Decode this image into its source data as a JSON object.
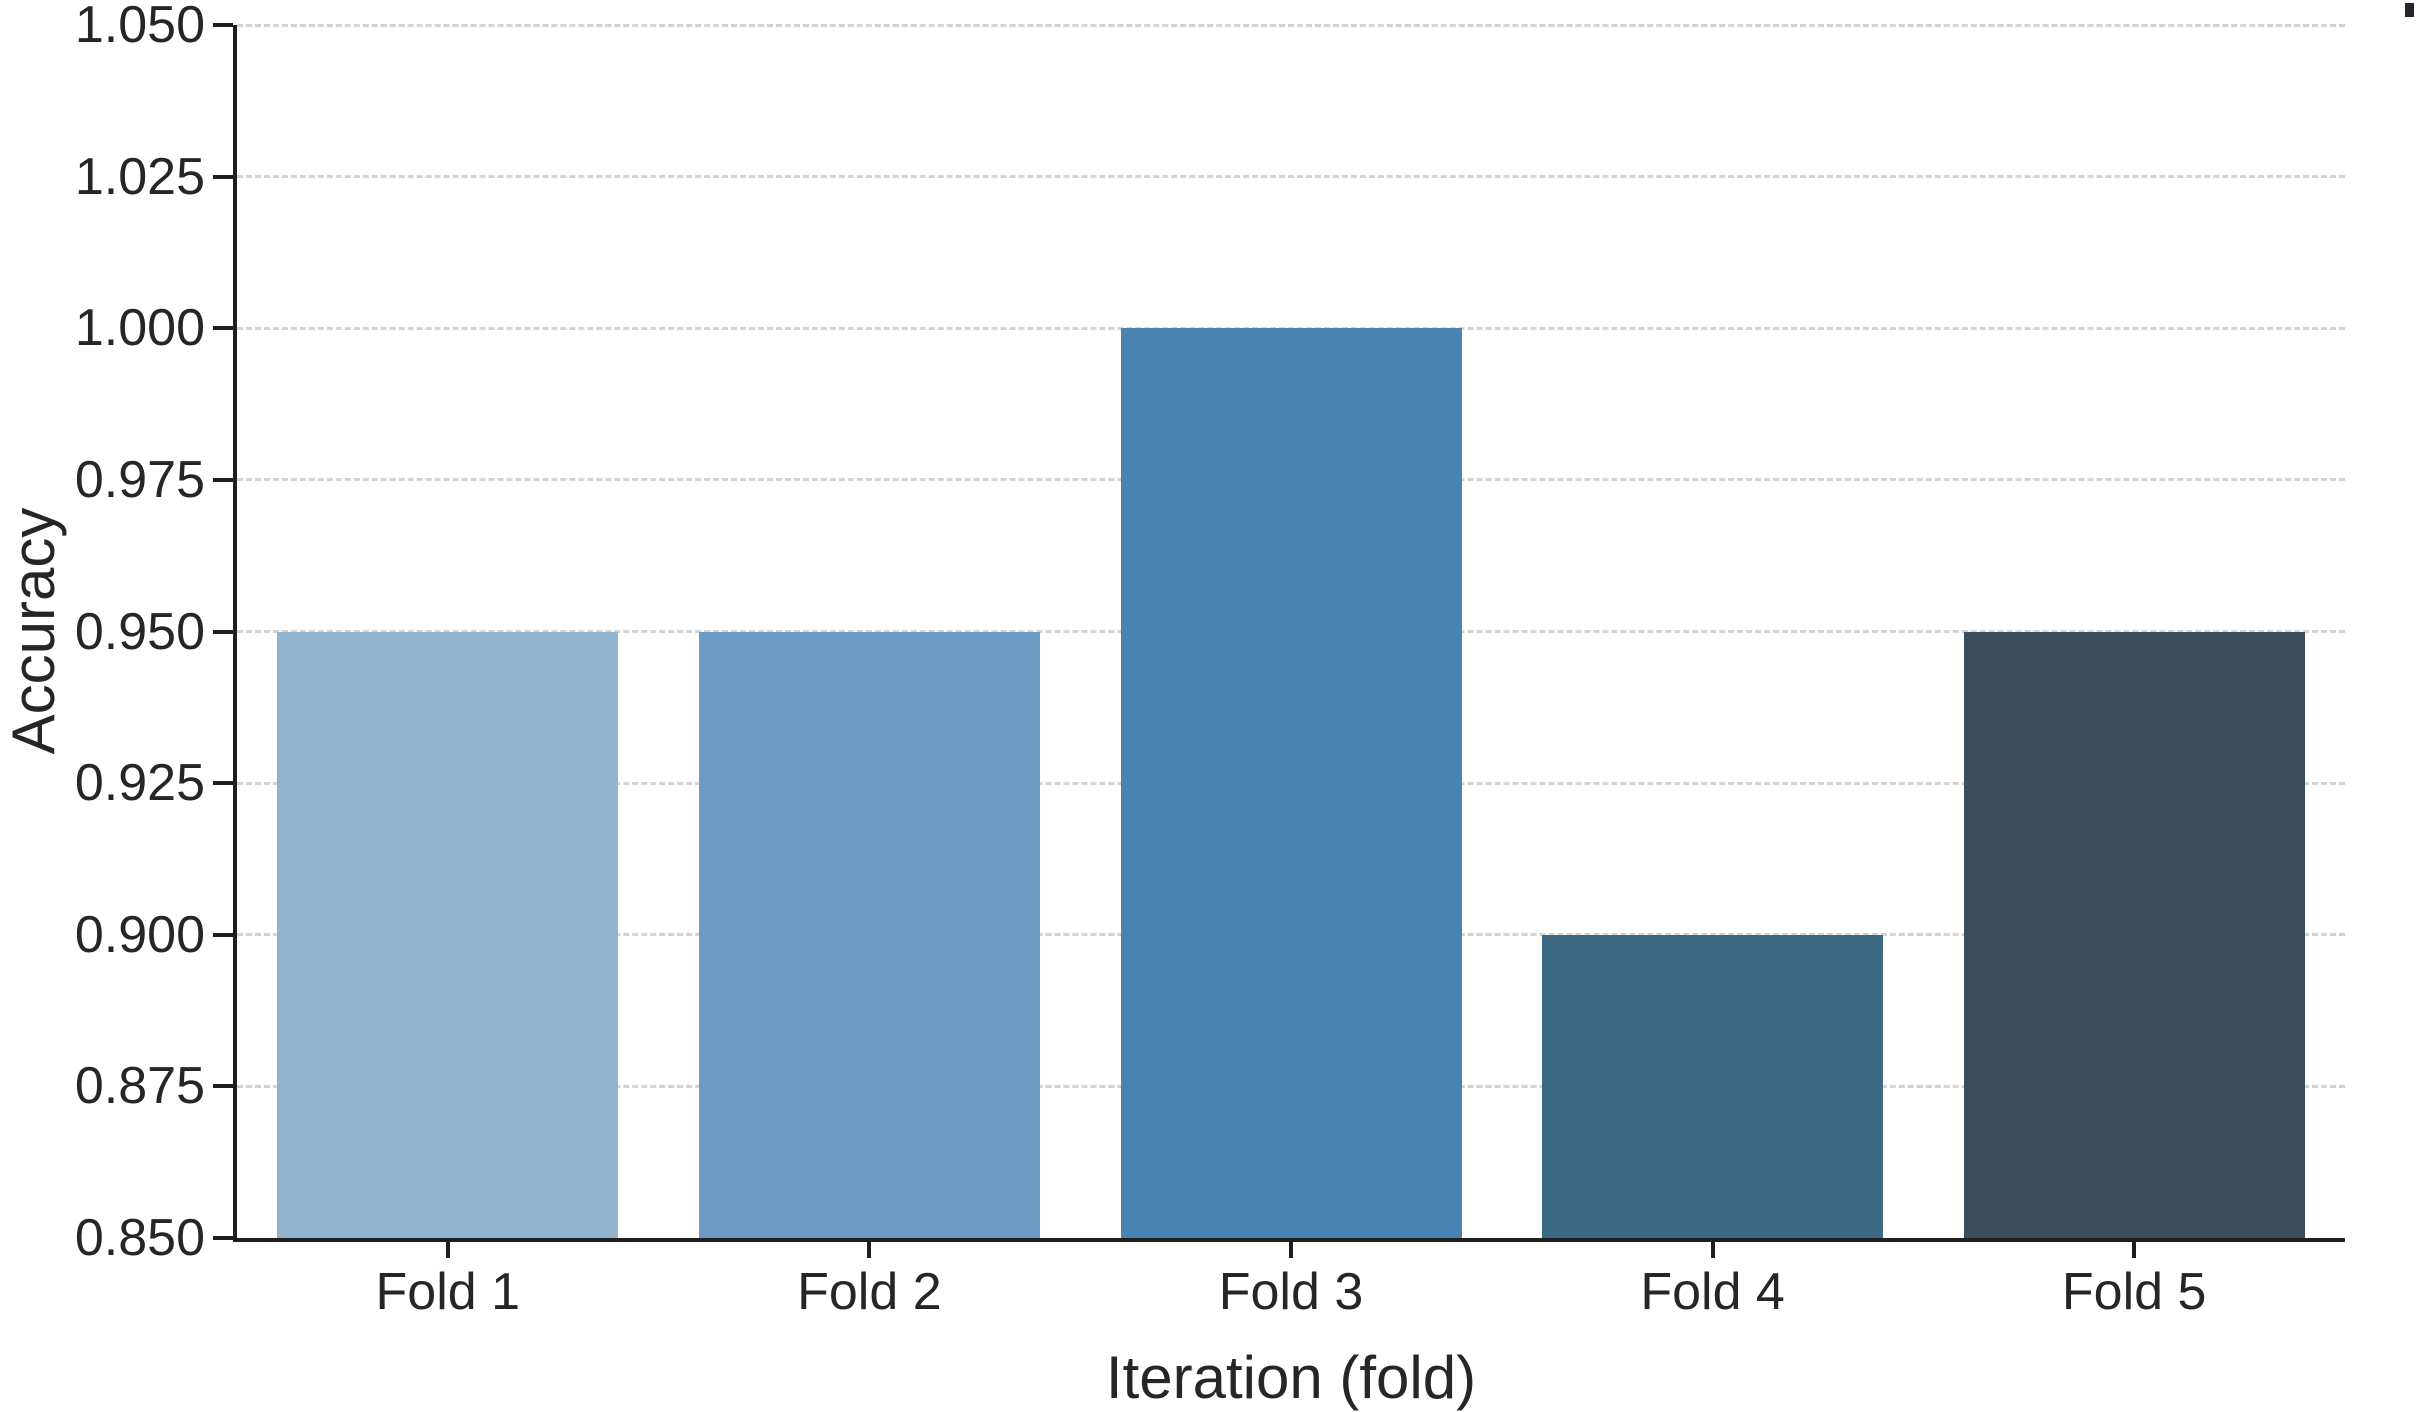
{
  "chart_data": {
    "type": "bar",
    "title": "",
    "xlabel": "Iteration (fold)",
    "ylabel": "Accuracy",
    "categories": [
      "Fold 1",
      "Fold 2",
      "Fold 3",
      "Fold 4",
      "Fold 5"
    ],
    "values": [
      0.95,
      0.95,
      1.0,
      0.9,
      0.95
    ],
    "bar_colors": [
      "#91b4d1",
      "#6d9bc3",
      "#4983b1",
      "#3d6984",
      "#3c4e5c"
    ],
    "ylim": [
      0.85,
      1.05
    ],
    "y_ticks": [
      {
        "value": 0.85,
        "label": "0.850"
      },
      {
        "value": 0.875,
        "label": "0.875"
      },
      {
        "value": 0.9,
        "label": "0.900"
      },
      {
        "value": 0.925,
        "label": "0.925"
      },
      {
        "value": 0.95,
        "label": "0.950"
      },
      {
        "value": 0.975,
        "label": "0.975"
      },
      {
        "value": 1.0,
        "label": "1.000"
      },
      {
        "value": 1.025,
        "label": "1.025"
      },
      {
        "value": 1.05,
        "label": "1.050"
      }
    ],
    "grid": "horizontal-dashed",
    "legend": "none",
    "colors": {
      "axis": "#1e1e1e",
      "grid": "#d4d4d4",
      "text": "#262626",
      "background": "#ffffff"
    }
  }
}
